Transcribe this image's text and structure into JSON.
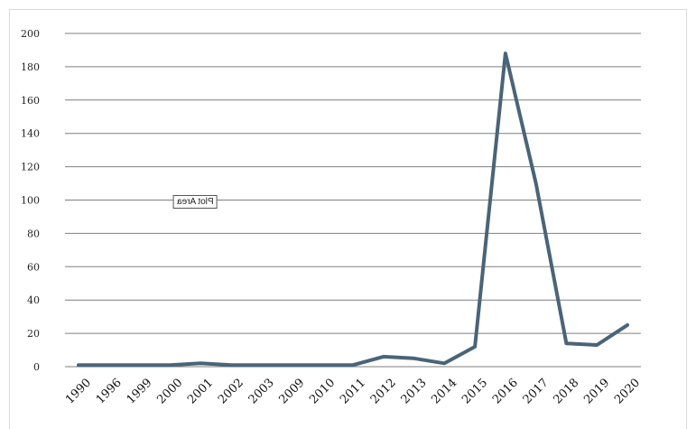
{
  "chart_data": {
    "type": "line",
    "categories": [
      "1990",
      "1996",
      "1999",
      "2000",
      "2001",
      "2002",
      "2003",
      "2009",
      "2010",
      "2011",
      "2012",
      "2013",
      "2014",
      "2015",
      "2016",
      "2017",
      "2018",
      "2019",
      "2020"
    ],
    "series": [
      {
        "values": [
          1,
          1,
          1,
          1,
          2,
          1,
          1,
          1,
          1,
          1,
          6,
          5,
          2,
          12,
          188,
          110,
          14,
          13,
          25
        ]
      }
    ],
    "yticks": [
      0,
      20,
      40,
      60,
      80,
      100,
      120,
      140,
      160,
      180,
      200
    ],
    "ylim": [
      0,
      200
    ],
    "grid": true,
    "legend": "none",
    "line_color": "#4a6478"
  },
  "tooltip_text": "Plot Area"
}
